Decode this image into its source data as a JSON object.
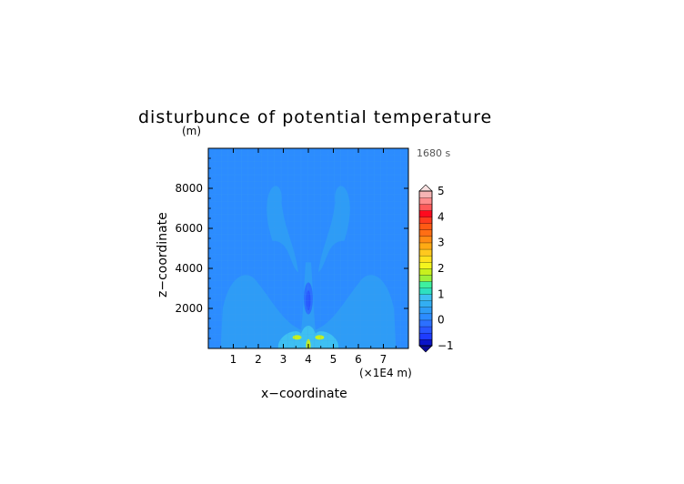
{
  "chart_data": {
    "type": "contour",
    "title": "disturbunce of potential temperature",
    "y_unit": "(m)",
    "time_label": "1680 s",
    "xlabel": "x−coordinate",
    "ylabel": "z−coordinate",
    "x_unit": "(×1E4 m)",
    "xlim": [
      0,
      8
    ],
    "ylim": [
      0,
      10000
    ],
    "x_ticks": [
      1,
      2,
      3,
      4,
      5,
      6,
      7
    ],
    "x_tick_labels": [
      "1",
      "2",
      "3",
      "4",
      "5",
      "6",
      "7"
    ],
    "y_ticks": [
      2000,
      4000,
      6000,
      8000
    ],
    "y_tick_labels": [
      "2000",
      "4000",
      "6000",
      "8000"
    ],
    "colorbar": {
      "min": -1,
      "max": 5,
      "step": 0.25,
      "tick_values": [
        -1,
        0,
        1,
        2,
        3,
        4,
        5
      ],
      "tick_labels": [
        "−1",
        "0",
        "1",
        "2",
        "3",
        "4",
        "5"
      ],
      "colors": [
        "#0a14c8",
        "#1e3cff",
        "#2856ff",
        "#2c70ff",
        "#2c8cff",
        "#2e9cf6",
        "#33aef2",
        "#3ec0f2",
        "#2ee0c0",
        "#3ef0a0",
        "#9cf03a",
        "#c8f01e",
        "#f5f51e",
        "#ffe11e",
        "#ffc81e",
        "#ffaa14",
        "#ff8c14",
        "#ff6e14",
        "#ff5a14",
        "#ff3c1e",
        "#ff0a1e",
        "#ff5a5a",
        "#ff8c8c",
        "#f5b4b4"
      ]
    },
    "contours": [
      {
        "level": -0.25,
        "shape": "ellipse",
        "cx": 4.0,
        "cy": 2500,
        "rx": 0.18,
        "ry": 800
      },
      {
        "level": -0.5,
        "shape": "ellipse",
        "cx": 4.0,
        "cy": 2400,
        "rx": 0.09,
        "ry": 500
      },
      {
        "level": 0.25,
        "shape": "dome",
        "x_range": [
          0.5,
          7.5
        ],
        "top": 4000
      },
      {
        "level": 0.25,
        "shape": "plume-left",
        "x_range": [
          2.2,
          3.6
        ],
        "z_range": [
          3800,
          8100
        ]
      },
      {
        "level": 0.25,
        "shape": "plume-right",
        "x_range": [
          4.4,
          5.8
        ],
        "z_range": [
          3800,
          8100
        ]
      },
      {
        "level": 0.75,
        "shape": "base",
        "x_range": [
          2.8,
          5.2
        ],
        "z_range": [
          0,
          1000
        ]
      },
      {
        "level": 1.75,
        "shape": "spots",
        "points": [
          [
            3.55,
            550
          ],
          [
            4.45,
            550
          ],
          [
            4.0,
            150
          ]
        ]
      }
    ]
  }
}
